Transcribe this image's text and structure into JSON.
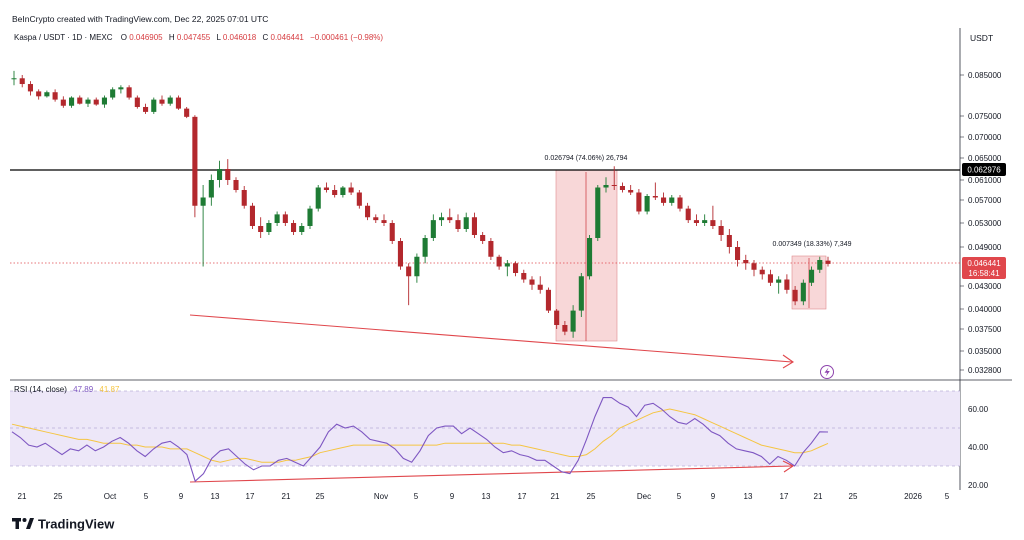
{
  "header": {
    "created_by": "BeInCrypto created with TradingView.com, Dec 22, 2025 07:01 UTC",
    "symbol": "Kaspa / USDT · 1D · MEXC",
    "o_label": "O",
    "o_value": "0.046905",
    "h_label": "H",
    "h_value": "0.047455",
    "l_label": "L",
    "l_value": "0.046018",
    "c_label": "C",
    "c_value": "0.046441",
    "change": "−0.000461 (−0.98%)"
  },
  "price_axis": {
    "currency": "USDT",
    "ticks": [
      "0.085000",
      "0.075000",
      "0.070000",
      "0.065000",
      "0.061000",
      "0.057000",
      "0.053000",
      "0.049000",
      "0.043000",
      "0.040000",
      "0.037500",
      "0.035000",
      "0.032800"
    ],
    "last_price_label": "0.046441",
    "countdown": "16:58:41",
    "resistance_label": "0.062976"
  },
  "rsi": {
    "label": "RSI (14, close)",
    "value1": "47.89",
    "value2": "41.87",
    "ticks": [
      "60.00",
      "40.00",
      "20.00"
    ]
  },
  "time_axis": [
    "21",
    "25",
    "Oct",
    "5",
    "9",
    "13",
    "17",
    "21",
    "25",
    "Nov",
    "5",
    "9",
    "13",
    "17",
    "21",
    "25",
    "Dec",
    "5",
    "9",
    "13",
    "17",
    "21",
    "25",
    "2026",
    "5"
  ],
  "measures": [
    {
      "text": "0.026794 (74.06%) 26,794"
    },
    {
      "text": "0.007349 (18.33%) 7,349"
    }
  ],
  "brand": {
    "logo_text": "TradingView"
  },
  "colors": {
    "up": "#1e7b34",
    "down": "#b3282d",
    "rsi_line": "#7e57c2",
    "rsi_ma": "#f5c542",
    "arrow": "#e0474c",
    "resistance": "#000000",
    "last_price": "#e0474c"
  },
  "chart_data": {
    "type": "candlestick",
    "title": "Kaspa / USDT · 1D · MEXC",
    "resistance": 0.062976,
    "last_price": 0.046441,
    "candles": [
      [
        0.084,
        0.086,
        0.0825,
        0.0842
      ],
      [
        0.0842,
        0.085,
        0.082,
        0.0828
      ],
      [
        0.0828,
        0.0835,
        0.08,
        0.081
      ],
      [
        0.081,
        0.0815,
        0.079,
        0.0798
      ],
      [
        0.0798,
        0.0812,
        0.0795,
        0.0808
      ],
      [
        0.0808,
        0.0815,
        0.0785,
        0.079
      ],
      [
        0.079,
        0.0798,
        0.077,
        0.0775
      ],
      [
        0.0775,
        0.0798,
        0.077,
        0.0795
      ],
      [
        0.0795,
        0.08,
        0.0778,
        0.078
      ],
      [
        0.078,
        0.0795,
        0.0772,
        0.079
      ],
      [
        0.079,
        0.0795,
        0.0775,
        0.0778
      ],
      [
        0.0778,
        0.08,
        0.077,
        0.0795
      ],
      [
        0.0795,
        0.082,
        0.079,
        0.0815
      ],
      [
        0.0815,
        0.0825,
        0.0805,
        0.082
      ],
      [
        0.082,
        0.0825,
        0.079,
        0.0795
      ],
      [
        0.0795,
        0.08,
        0.0768,
        0.0772
      ],
      [
        0.0772,
        0.078,
        0.0755,
        0.076
      ],
      [
        0.076,
        0.0795,
        0.0755,
        0.079
      ],
      [
        0.079,
        0.08,
        0.0775,
        0.078
      ],
      [
        0.078,
        0.08,
        0.0775,
        0.0795
      ],
      [
        0.0795,
        0.08,
        0.0765,
        0.0768
      ],
      [
        0.0768,
        0.0772,
        0.0745,
        0.0748
      ],
      [
        0.0748,
        0.0752,
        0.054,
        0.056
      ],
      [
        0.056,
        0.06,
        0.046,
        0.0575
      ],
      [
        0.0575,
        0.062,
        0.056,
        0.061
      ],
      [
        0.061,
        0.0645,
        0.0595,
        0.063
      ],
      [
        0.063,
        0.0648,
        0.06,
        0.061
      ],
      [
        0.061,
        0.0615,
        0.0585,
        0.059
      ],
      [
        0.059,
        0.0598,
        0.0555,
        0.056
      ],
      [
        0.056,
        0.0565,
        0.052,
        0.0525
      ],
      [
        0.0525,
        0.054,
        0.0505,
        0.0515
      ],
      [
        0.0515,
        0.0535,
        0.051,
        0.053
      ],
      [
        0.053,
        0.055,
        0.0525,
        0.0545
      ],
      [
        0.0545,
        0.055,
        0.0525,
        0.053
      ],
      [
        0.053,
        0.0535,
        0.051,
        0.0515
      ],
      [
        0.0515,
        0.053,
        0.051,
        0.0525
      ],
      [
        0.0525,
        0.056,
        0.052,
        0.0555
      ],
      [
        0.0555,
        0.06,
        0.055,
        0.0595
      ],
      [
        0.0595,
        0.0605,
        0.0585,
        0.059
      ],
      [
        0.059,
        0.06,
        0.0575,
        0.058
      ],
      [
        0.058,
        0.0598,
        0.0575,
        0.0595
      ],
      [
        0.0595,
        0.0605,
        0.058,
        0.0585
      ],
      [
        0.0585,
        0.059,
        0.0555,
        0.056
      ],
      [
        0.056,
        0.0565,
        0.0535,
        0.054
      ],
      [
        0.054,
        0.0545,
        0.053,
        0.0535
      ],
      [
        0.0535,
        0.0545,
        0.0525,
        0.053
      ],
      [
        0.053,
        0.0535,
        0.0495,
        0.05
      ],
      [
        0.05,
        0.0505,
        0.0455,
        0.046
      ],
      [
        0.046,
        0.0465,
        0.0405,
        0.0445
      ],
      [
        0.0445,
        0.048,
        0.0435,
        0.0475
      ],
      [
        0.0475,
        0.051,
        0.0465,
        0.0505
      ],
      [
        0.0505,
        0.0545,
        0.05,
        0.0535
      ],
      [
        0.0535,
        0.0548,
        0.0525,
        0.054
      ],
      [
        0.054,
        0.0555,
        0.053,
        0.0535
      ],
      [
        0.0535,
        0.0545,
        0.0515,
        0.052
      ],
      [
        0.052,
        0.0548,
        0.0515,
        0.054
      ],
      [
        0.054,
        0.0548,
        0.0505,
        0.051
      ],
      [
        0.051,
        0.0515,
        0.0495,
        0.05
      ],
      [
        0.05,
        0.0505,
        0.047,
        0.0475
      ],
      [
        0.0475,
        0.0478,
        0.0455,
        0.046
      ],
      [
        0.046,
        0.047,
        0.0445,
        0.0465
      ],
      [
        0.0465,
        0.0468,
        0.0445,
        0.045
      ],
      [
        0.045,
        0.0455,
        0.0435,
        0.044
      ],
      [
        0.044,
        0.0445,
        0.0425,
        0.0432
      ],
      [
        0.0432,
        0.0445,
        0.042,
        0.0425
      ],
      [
        0.0425,
        0.0428,
        0.0395,
        0.0398
      ],
      [
        0.0398,
        0.04,
        0.0375,
        0.038
      ],
      [
        0.038,
        0.0385,
        0.0368,
        0.0372
      ],
      [
        0.0372,
        0.0405,
        0.0365,
        0.0398
      ],
      [
        0.0398,
        0.045,
        0.039,
        0.0445
      ],
      [
        0.0445,
        0.051,
        0.044,
        0.0505
      ],
      [
        0.0505,
        0.06,
        0.05,
        0.0595
      ],
      [
        0.0595,
        0.0615,
        0.0585,
        0.06
      ],
      [
        0.06,
        0.0635,
        0.059,
        0.0598
      ],
      [
        0.0598,
        0.0605,
        0.0585,
        0.059
      ],
      [
        0.059,
        0.06,
        0.058,
        0.0585
      ],
      [
        0.0585,
        0.0592,
        0.0545,
        0.055
      ],
      [
        0.055,
        0.0582,
        0.0545,
        0.0578
      ],
      [
        0.0578,
        0.0605,
        0.057,
        0.0575
      ],
      [
        0.0575,
        0.0585,
        0.056,
        0.0565
      ],
      [
        0.0565,
        0.058,
        0.056,
        0.0575
      ],
      [
        0.0575,
        0.058,
        0.055,
        0.0555
      ],
      [
        0.0555,
        0.056,
        0.053,
        0.0535
      ],
      [
        0.0535,
        0.0545,
        0.0525,
        0.053
      ],
      [
        0.053,
        0.0545,
        0.0525,
        0.0535
      ],
      [
        0.0535,
        0.056,
        0.052,
        0.0525
      ],
      [
        0.0525,
        0.0535,
        0.05,
        0.051
      ],
      [
        0.051,
        0.052,
        0.048,
        0.049
      ],
      [
        0.049,
        0.05,
        0.046,
        0.047
      ],
      [
        0.047,
        0.0478,
        0.0455,
        0.0465
      ],
      [
        0.0465,
        0.047,
        0.0445,
        0.0455
      ],
      [
        0.0455,
        0.046,
        0.044,
        0.0448
      ],
      [
        0.0448,
        0.0455,
        0.043,
        0.0435
      ],
      [
        0.0435,
        0.0445,
        0.042,
        0.044
      ],
      [
        0.044,
        0.0448,
        0.042,
        0.0425
      ],
      [
        0.0425,
        0.043,
        0.0405,
        0.041
      ],
      [
        0.041,
        0.044,
        0.0405,
        0.0435
      ],
      [
        0.0435,
        0.046,
        0.043,
        0.0455
      ],
      [
        0.0455,
        0.0475,
        0.045,
        0.047
      ],
      [
        0.0469,
        0.0475,
        0.046,
        0.0464
      ]
    ],
    "rsi": [
      48,
      45,
      41,
      40,
      42,
      39,
      36,
      39,
      38,
      41,
      38,
      40,
      43,
      45,
      42,
      38,
      35,
      39,
      42,
      43,
      40,
      36,
      22,
      26,
      34,
      38,
      39,
      35,
      31,
      28,
      30,
      30,
      33,
      34,
      32,
      30,
      35,
      40,
      48,
      52,
      50,
      51,
      48,
      44,
      43,
      42,
      39,
      34,
      32,
      38,
      46,
      50,
      51,
      51,
      47,
      50,
      47,
      44,
      40,
      37,
      38,
      36,
      35,
      33,
      33,
      30,
      27,
      26,
      33,
      44,
      56,
      66,
      66,
      63,
      61,
      56,
      62,
      63,
      60,
      56,
      53,
      52,
      55,
      52,
      48,
      46,
      42,
      39,
      38,
      37,
      35,
      31,
      35,
      33,
      30,
      37,
      42,
      48,
      47.89
    ],
    "rsi_ma": [
      52,
      51,
      50,
      49,
      48,
      47,
      46,
      45,
      44,
      44,
      43,
      42,
      42,
      42,
      41,
      41,
      40,
      40,
      40,
      39,
      39,
      39,
      37,
      35,
      33,
      32,
      33,
      34,
      34,
      33,
      32,
      32,
      32,
      33,
      33,
      34,
      35,
      37,
      38,
      39,
      40,
      41,
      41,
      41,
      41,
      41,
      41,
      41,
      41,
      41,
      41,
      41,
      42,
      42,
      42,
      42,
      42,
      42,
      42,
      42,
      41,
      41,
      40,
      39,
      38,
      37,
      36,
      35,
      35,
      36,
      39,
      43,
      46,
      50,
      52,
      54,
      56,
      58,
      59,
      60,
      59,
      58,
      57,
      55,
      53,
      51,
      49,
      47,
      45,
      43,
      41,
      40,
      39,
      38,
      37,
      37,
      38,
      40,
      41.87
    ],
    "rsi_band": [
      30,
      70
    ],
    "measures": [
      {
        "from": 0.0368,
        "to": 0.0635,
        "change": 0.026794,
        "pct": 74.06
      },
      {
        "from": 0.0405,
        "to": 0.0475,
        "change": 0.007349,
        "pct": 18.33
      }
    ]
  }
}
